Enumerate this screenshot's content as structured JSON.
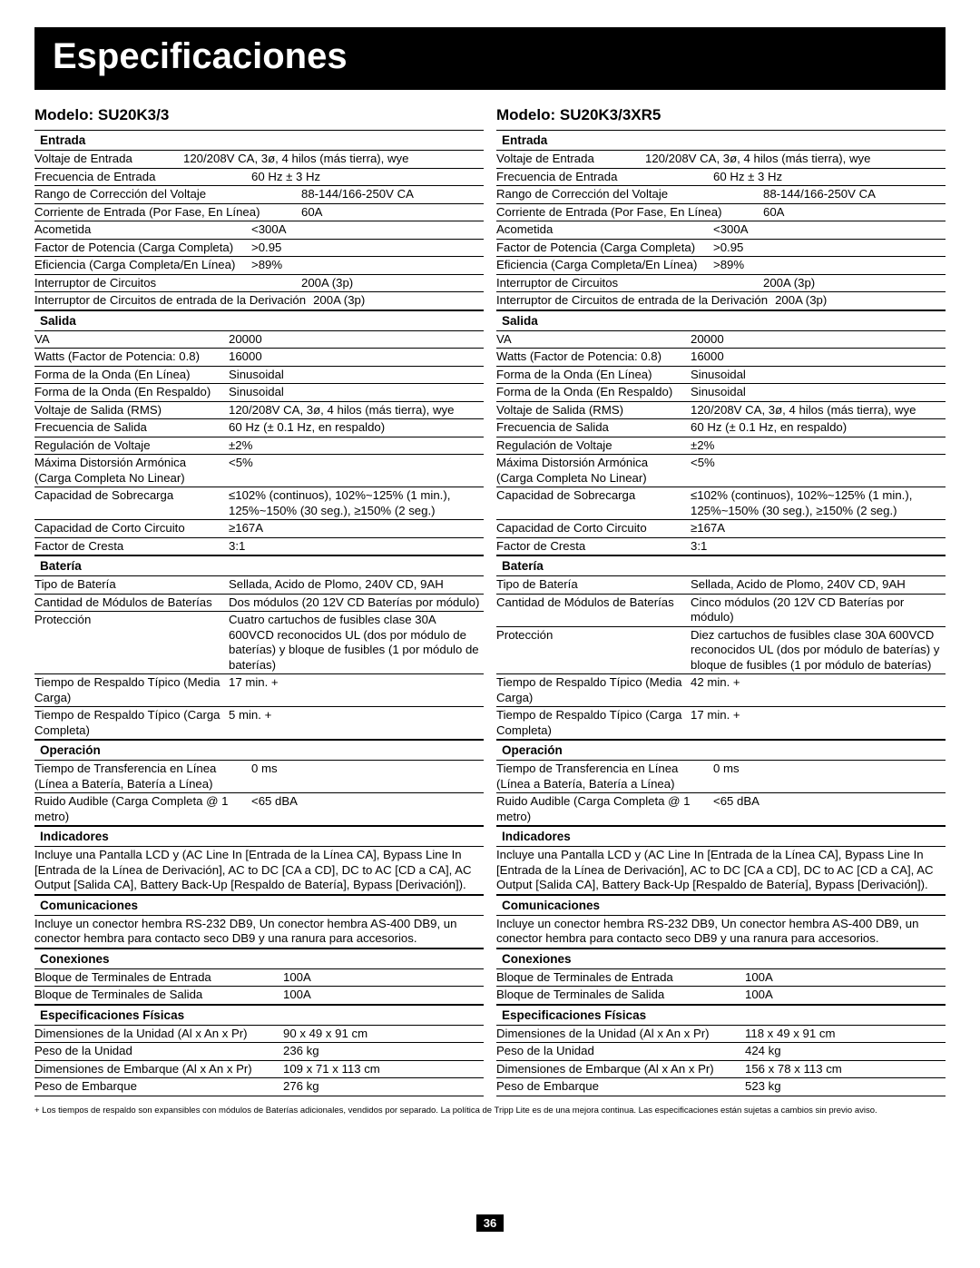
{
  "page_title": "Especificaciones",
  "footnote": "+ Los tiempos de respaldo son expansibles con módulos de Baterías adicionales, vendidos por separado. La política de Tripp Lite es de una mejora continua. Las especificaciones están sujetas a cambios sin previo aviso.",
  "page_number": "36",
  "models": [
    {
      "heading": "Modelo: SU20K3/3",
      "sections": {
        "entrada": {
          "title": "Entrada",
          "rows": [
            {
              "label": "Voltaje de Entrada",
              "value": "120/208V CA, 3ø, 4 hilos (más tierra), wye",
              "lw": "w6"
            },
            {
              "label": "Frecuencia de Entrada",
              "value": "60 Hz ± 3 Hz",
              "lw": "w1"
            },
            {
              "label": "Rango de Corrección del Voltaje",
              "value": "88-144/166-250V CA",
              "lw": "w5"
            },
            {
              "label": "Corriente de Entrada (Por Fase, En Línea)",
              "value": "60A",
              "lw": "w5"
            },
            {
              "label": "Acometida",
              "value": "<300A",
              "lw": "w1"
            },
            {
              "label": "Factor de Potencia (Carga Completa)",
              "value": ">0.95",
              "lw": "w1"
            },
            {
              "label": "Eficiencia (Carga Completa/En Línea)",
              "value": ">89%",
              "lw": "w1"
            },
            {
              "label": "Interruptor de Circuitos",
              "value": "200A (3p)",
              "lw": "w5"
            },
            {
              "label": "Interruptor de Circuitos de entrada de la Derivación",
              "value": "200A (3p)",
              "lw": ""
            }
          ]
        },
        "salida": {
          "title": "Salida",
          "rows": [
            {
              "label": "VA",
              "value": "20000",
              "lw": "w4"
            },
            {
              "label": "Watts (Factor de Potencia: 0.8)",
              "value": "16000",
              "lw": "w4"
            },
            {
              "label": "Forma de la Onda (En Línea)",
              "value": "Sinusoidal",
              "lw": "w4"
            },
            {
              "label": "Forma de la Onda (En Respaldo)",
              "value": "Sinusoidal",
              "lw": "w4"
            },
            {
              "label": "Voltaje de Salida (RMS)",
              "value": "120/208V CA, 3ø, 4 hilos (más tierra), wye",
              "lw": "w4"
            },
            {
              "label": "Frecuencia de Salida",
              "value": "60 Hz (± 0.1 Hz, en respaldo)",
              "lw": "w4"
            },
            {
              "label": "Regulación de Voltaje",
              "value": "±2%",
              "lw": "w4"
            },
            {
              "label": "Máxima Distorsión Armónica (Carga Completa No Linear)",
              "value": "<5%",
              "lw": "w4"
            },
            {
              "label": "Capacidad de Sobrecarga",
              "value": "≤102% (continuos), 102%~125% (1 min.), 125%~150% (30 seg.), ≥150% (2 seg.)",
              "lw": "w4"
            },
            {
              "label": "Capacidad de Corto Circuito",
              "value": "≥167A",
              "lw": "w4"
            },
            {
              "label": "Factor de Cresta",
              "value": "3:1",
              "lw": "w4"
            }
          ]
        },
        "bateria": {
          "title": "Batería",
          "rows": [
            {
              "label": "Tipo de Batería",
              "value": "Sellada, Acido de Plomo, 240V CD, 9AH",
              "lw": "w4"
            },
            {
              "label": "Cantidad de Módulos de Baterías",
              "value": "Dos módulos (20 12V CD Baterías por módulo)",
              "lw": "w4"
            },
            {
              "label": "Protección",
              "value": "Cuatro cartuchos de fusibles clase 30A 600VCD reconocidos UL (dos por módulo de baterías) y bloque de fusibles (1 por módulo de baterías)",
              "lw": "w4"
            },
            {
              "label": "Tiempo de Respaldo Típico (Media Carga)",
              "value": "17 min. +",
              "lw": "w4"
            },
            {
              "label": "Tiempo de Respaldo Típico (Carga Completa)",
              "value": "5 min. +",
              "lw": "w4"
            }
          ]
        },
        "operacion": {
          "title": "Operación",
          "rows": [
            {
              "label": "Tiempo de Transferencia en Línea (Línea a Batería, Batería a Línea)",
              "value": "0 ms",
              "lw": "w1"
            },
            {
              "label": "Ruido Audible (Carga Completa @ 1 metro)",
              "value": "<65 dBA",
              "lw": "w1"
            }
          ]
        },
        "indicadores": {
          "title": "Indicadores",
          "text": "Incluye una Pantalla LCD y (AC Line In [Entrada de la Línea CA], Bypass Line In [Entrada de la Línea de Derivación], AC to DC [CA a CD], DC to AC [CD a CA], AC Output [Salida CA], Battery Back-Up [Respaldo de Batería], Bypass [Derivación])."
        },
        "comunicaciones": {
          "title": "Comunicaciones",
          "text": "Incluye un conector hembra RS-232 DB9, Un conector hembra AS-400 DB9, un conector hembra para contacto seco DB9 y una ranura para accesorios."
        },
        "conexiones": {
          "title": "Conexiones",
          "rows": [
            {
              "label": "Bloque de Terminales de Entrada",
              "value": "100A",
              "lw": "w3"
            },
            {
              "label": "Bloque de Terminales de Salida",
              "value": "100A",
              "lw": "w3"
            }
          ]
        },
        "fisicas": {
          "title": "Especificaciones Físicas",
          "rows": [
            {
              "label": "Dimensiones de la Unidad (Al x An x Pr)",
              "value": "90 x 49 x 91 cm",
              "lw": "w3"
            },
            {
              "label": "Peso de la Unidad",
              "value": "236 kg",
              "lw": "w3"
            },
            {
              "label": "Dimensiones de Embarque (Al x An x Pr)",
              "value": "109 x 71 x 113 cm",
              "lw": "w3"
            },
            {
              "label": "Peso de Embarque",
              "value": "276 kg",
              "lw": "w3"
            }
          ]
        }
      }
    },
    {
      "heading": "Modelo: SU20K3/3XR5",
      "sections": {
        "entrada": {
          "title": "Entrada",
          "rows": [
            {
              "label": "Voltaje de Entrada",
              "value": "120/208V CA, 3ø, 4 hilos (más tierra), wye",
              "lw": "w6"
            },
            {
              "label": "Frecuencia de Entrada",
              "value": "60 Hz ± 3 Hz",
              "lw": "w1"
            },
            {
              "label": "Rango de Corrección del Voltaje",
              "value": "88-144/166-250V CA",
              "lw": "w5"
            },
            {
              "label": "Corriente de Entrada (Por Fase, En Línea)",
              "value": "60A",
              "lw": "w5"
            },
            {
              "label": "Acometida",
              "value": "<300A",
              "lw": "w1"
            },
            {
              "label": "Factor de Potencia (Carga Completa)",
              "value": ">0.95",
              "lw": "w1"
            },
            {
              "label": "Eficiencia (Carga Completa/En Línea)",
              "value": ">89%",
              "lw": "w1"
            },
            {
              "label": "Interruptor de Circuitos",
              "value": "200A (3p)",
              "lw": "w5"
            },
            {
              "label": "Interruptor de Circuitos de entrada de la Derivación",
              "value": "200A (3p)",
              "lw": ""
            }
          ]
        },
        "salida": {
          "title": "Salida",
          "rows": [
            {
              "label": "VA",
              "value": "20000",
              "lw": "w4"
            },
            {
              "label": "Watts (Factor de Potencia: 0.8)",
              "value": "16000",
              "lw": "w4"
            },
            {
              "label": "Forma de la Onda (En Línea)",
              "value": "Sinusoidal",
              "lw": "w4"
            },
            {
              "label": "Forma de la Onda (En Respaldo)",
              "value": "Sinusoidal",
              "lw": "w4"
            },
            {
              "label": "Voltaje de Salida (RMS)",
              "value": "120/208V CA, 3ø, 4 hilos (más tierra), wye",
              "lw": "w4"
            },
            {
              "label": "Frecuencia de Salida",
              "value": "60 Hz (± 0.1 Hz, en respaldo)",
              "lw": "w4"
            },
            {
              "label": "Regulación de Voltaje",
              "value": "±2%",
              "lw": "w4"
            },
            {
              "label": "Máxima Distorsión Armónica (Carga Completa No Linear)",
              "value": "<5%",
              "lw": "w4"
            },
            {
              "label": "Capacidad de Sobrecarga",
              "value": "≤102% (continuos), 102%~125% (1 min.), 125%~150% (30 seg.), ≥150% (2 seg.)",
              "lw": "w4"
            },
            {
              "label": "Capacidad de Corto Circuito",
              "value": "≥167A",
              "lw": "w4"
            },
            {
              "label": "Factor de Cresta",
              "value": "3:1",
              "lw": "w4"
            }
          ]
        },
        "bateria": {
          "title": "Batería",
          "rows": [
            {
              "label": "Tipo de Batería",
              "value": "Sellada, Acido de Plomo, 240V CD, 9AH",
              "lw": "w4"
            },
            {
              "label": "Cantidad de Módulos de Baterías",
              "value": "Cinco módulos (20 12V CD Baterías por módulo)",
              "lw": "w4"
            },
            {
              "label": "Protección",
              "value": "Diez cartuchos de fusibles clase 30A 600VCD reconocidos UL (dos por módulo de baterías) y bloque de fusibles (1 por módulo de baterías)",
              "lw": "w4"
            },
            {
              "label": "Tiempo de Respaldo Típico (Media Carga)",
              "value": "42 min. +",
              "lw": "w4"
            },
            {
              "label": "Tiempo de Respaldo Típico (Carga Completa)",
              "value": "17 min. +",
              "lw": "w4"
            }
          ]
        },
        "operacion": {
          "title": "Operación",
          "rows": [
            {
              "label": "Tiempo de Transferencia en Línea (Línea a Batería, Batería a Línea)",
              "value": "0 ms",
              "lw": "w1"
            },
            {
              "label": "Ruido Audible (Carga Completa @ 1 metro)",
              "value": "<65 dBA",
              "lw": "w1"
            }
          ]
        },
        "indicadores": {
          "title": "Indicadores",
          "text": "Incluye una Pantalla LCD y (AC Line In [Entrada de la Línea CA], Bypass Line In [Entrada de la Línea de Derivación], AC to DC [CA a CD], DC to AC [CD a CA], AC Output [Salida CA], Battery Back-Up [Respaldo de Batería], Bypass [Derivación])."
        },
        "comunicaciones": {
          "title": "Comunicaciones",
          "text": "Incluye un conector hembra RS-232 DB9, Un conector hembra AS-400 DB9, un conector hembra para contacto seco DB9 y una ranura para accesorios."
        },
        "conexiones": {
          "title": "Conexiones",
          "rows": [
            {
              "label": "Bloque de Terminales de Entrada",
              "value": "100A",
              "lw": "w3"
            },
            {
              "label": "Bloque de Terminales de Salida",
              "value": "100A",
              "lw": "w3"
            }
          ]
        },
        "fisicas": {
          "title": "Especificaciones Físicas",
          "rows": [
            {
              "label": "Dimensiones de la Unidad (Al x An x Pr)",
              "value": "118 x 49 x 91 cm",
              "lw": "w3"
            },
            {
              "label": "Peso de la Unidad",
              "value": "424 kg",
              "lw": "w3"
            },
            {
              "label": "Dimensiones de Embarque (Al x An x Pr)",
              "value": "156 x 78 x 113 cm",
              "lw": "w3"
            },
            {
              "label": "Peso de Embarque",
              "value": "523 kg",
              "lw": "w3"
            }
          ]
        }
      }
    }
  ]
}
